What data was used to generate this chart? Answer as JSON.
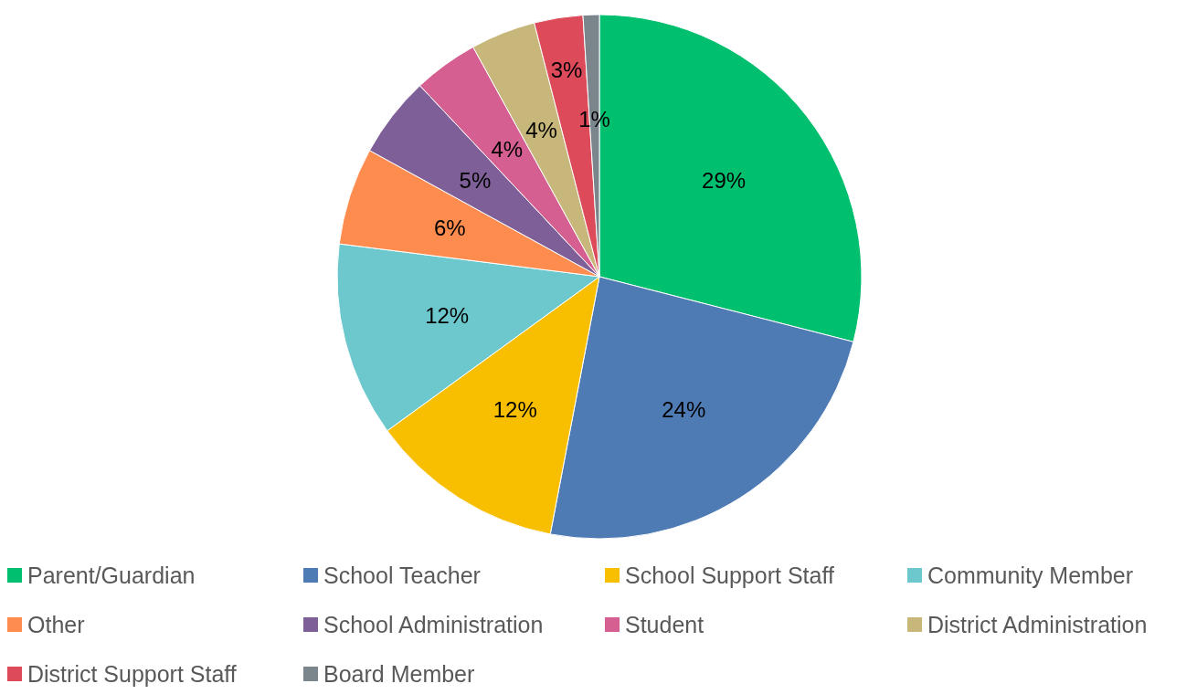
{
  "chart_data": {
    "type": "pie",
    "categories": [
      "Parent/Guardian",
      "School Teacher",
      "School Support Staff",
      "Community Member",
      "Other",
      "School Administration",
      "Student",
      "District Administration",
      "District Support Staff",
      "Board Member"
    ],
    "values": [
      29,
      24,
      12,
      12,
      6,
      5,
      4,
      4,
      3,
      1
    ],
    "colors": [
      "#00bf6f",
      "#4f7bb5",
      "#f8be00",
      "#6cc8cc",
      "#ff8c4f",
      "#7e5f97",
      "#d45f90",
      "#c8b77a",
      "#dd4a5a",
      "#7b868c"
    ],
    "value_labels": [
      "29%",
      "24%",
      "12%",
      "12%",
      "6%",
      "5%",
      "4%",
      "4%",
      "3%",
      "1%"
    ],
    "legend": "bottom"
  }
}
